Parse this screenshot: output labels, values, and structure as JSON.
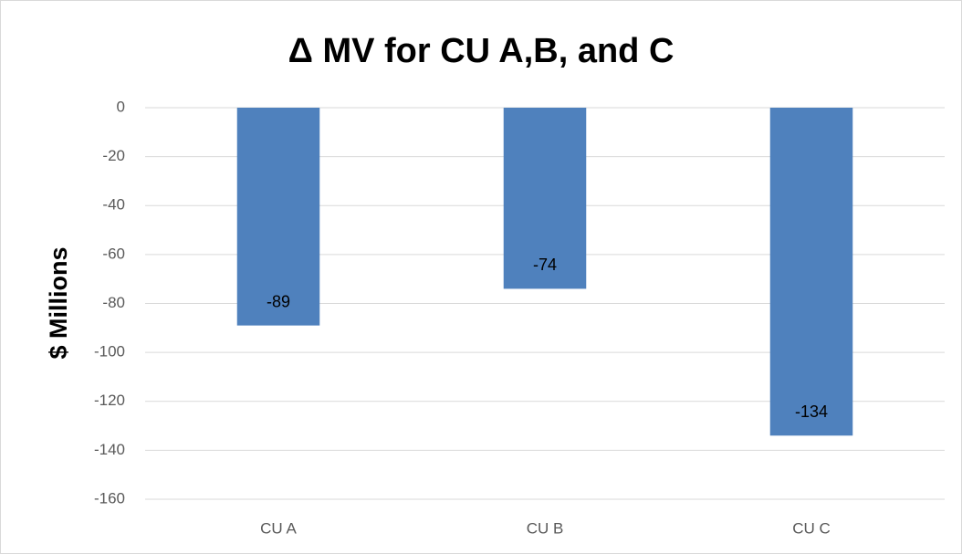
{
  "chart_data": {
    "type": "bar",
    "title": "Δ MV for CU A,B, and C",
    "y_label": "$ Millions",
    "categories": [
      "CU A",
      "CU B",
      "CU C"
    ],
    "values": [
      -89,
      -74,
      -134
    ],
    "color": "#4f81bd",
    "ylim": [
      -160,
      0
    ],
    "yticks": [
      0,
      -20,
      -40,
      -60,
      -80,
      -100,
      -120,
      -140,
      -160
    ],
    "grid": true
  }
}
